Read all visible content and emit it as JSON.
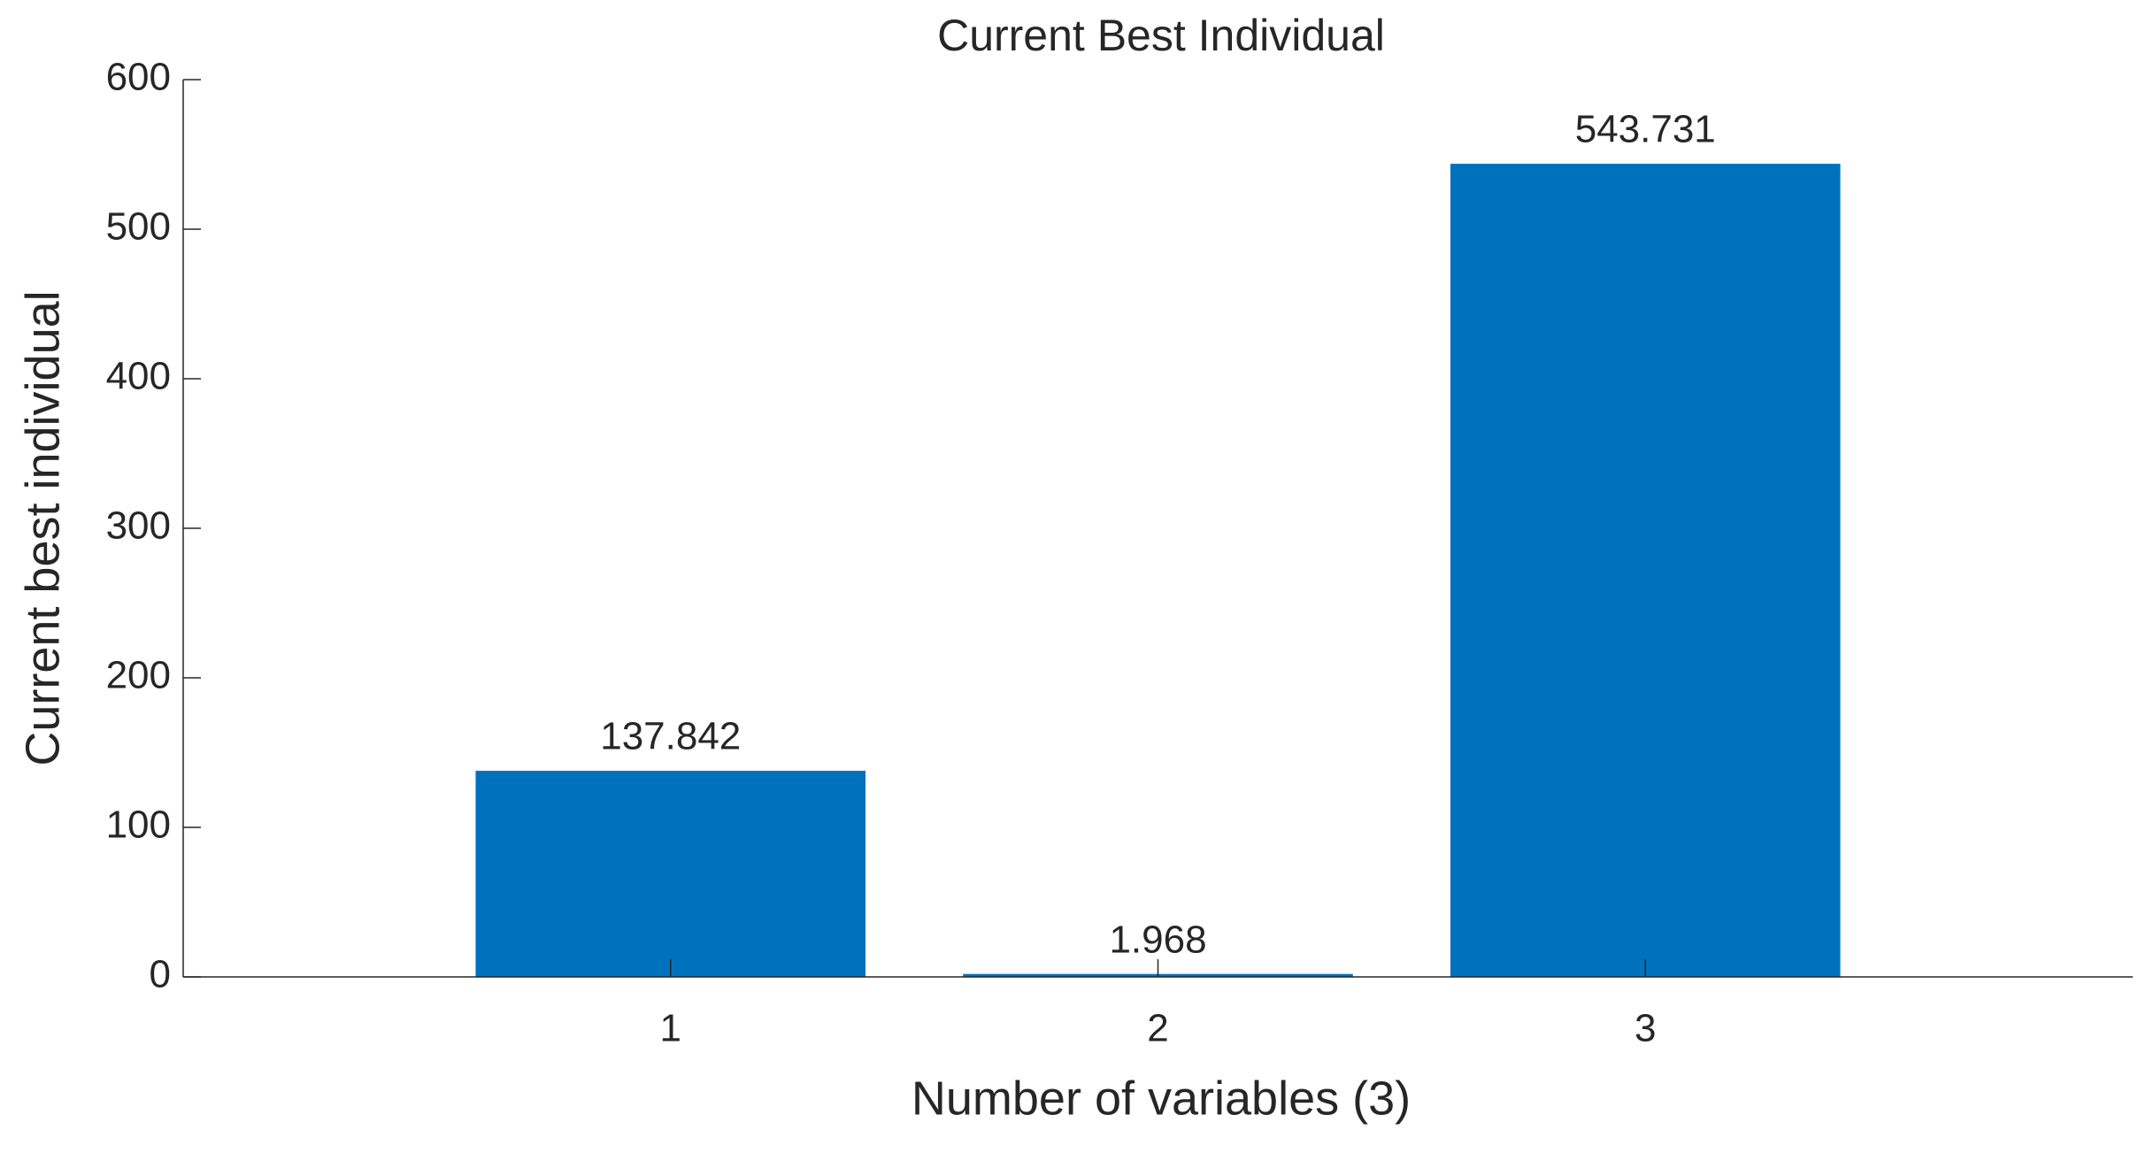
{
  "chart_data": {
    "type": "bar",
    "title": "Current Best Individual",
    "x_label": "Number of variables (3)",
    "y_label": "Current best individual",
    "x": [
      1,
      2,
      3
    ],
    "values": [
      137.842,
      1.968,
      543.731
    ],
    "color": "#0072bd",
    "xlim": [
      0,
      4
    ],
    "xticks": [
      1,
      2,
      3
    ],
    "ylim": [
      0,
      600
    ],
    "yticks": [
      0,
      100,
      200,
      300,
      400,
      500,
      600
    ],
    "grid": false
  }
}
